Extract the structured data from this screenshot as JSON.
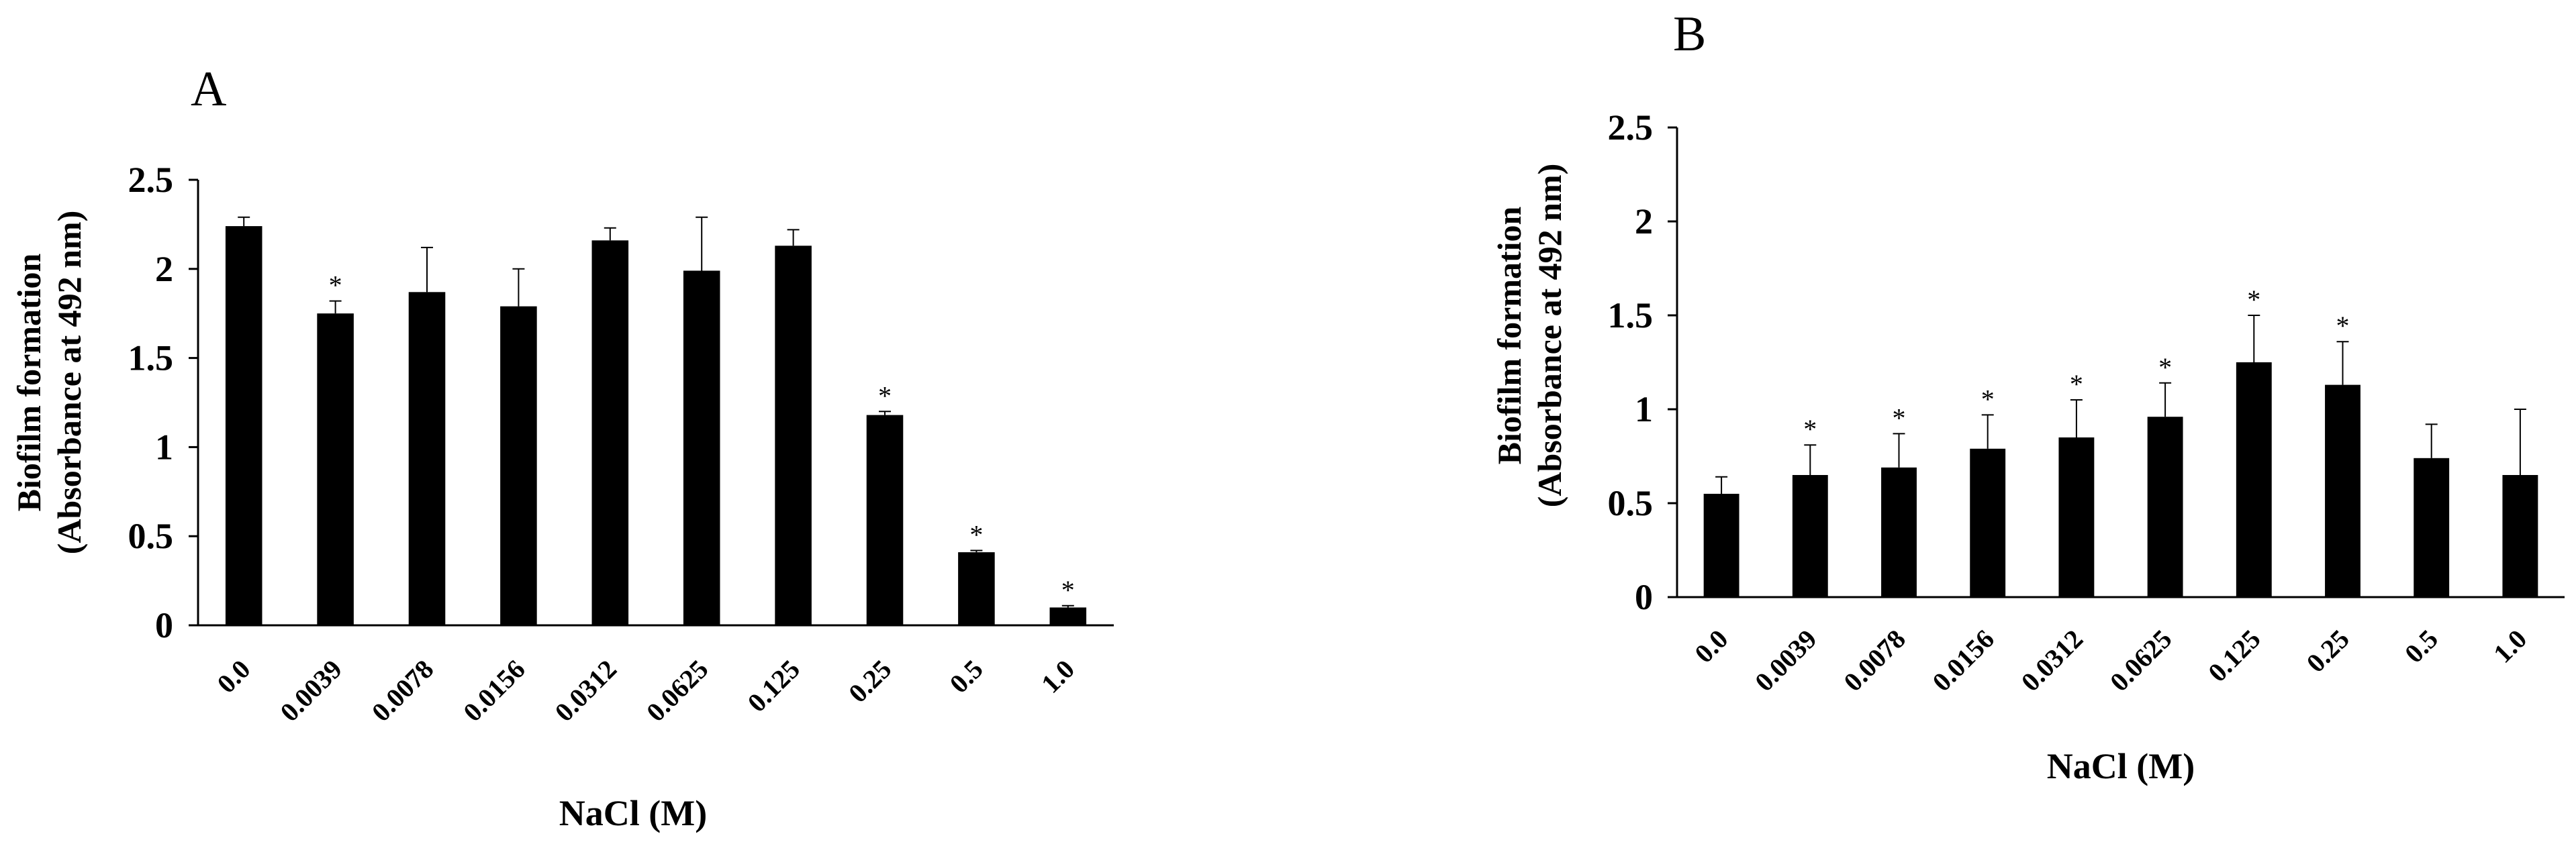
{
  "colors": {
    "bar": "#000000",
    "axis": "#000000",
    "background": "#ffffff"
  },
  "chart_data": [
    {
      "panel": "A",
      "type": "bar",
      "title": "",
      "xlabel": "NaCl (M)",
      "ylabel_line1": "Biofilm formation",
      "ylabel_line2": "(Absorbance at 492 nm)",
      "ylim": [
        0,
        2.5
      ],
      "yticks": [
        "0",
        "0.5",
        "1",
        "1.5",
        "2",
        "2.5"
      ],
      "categories": [
        "0.0",
        "0.0039",
        "0.0078",
        "0.0156",
        "0.0312",
        "0.0625",
        "0.125",
        "0.25",
        "0.5",
        "1.0"
      ],
      "values": [
        2.24,
        1.75,
        1.87,
        1.79,
        2.16,
        1.99,
        2.13,
        1.18,
        0.41,
        0.1
      ],
      "errors": [
        0.05,
        0.07,
        0.25,
        0.21,
        0.07,
        0.3,
        0.09,
        0.02,
        0.01,
        0.01
      ],
      "significant": [
        false,
        true,
        false,
        false,
        false,
        false,
        false,
        true,
        true,
        true
      ],
      "significance_marker": "*",
      "grid": false,
      "legend": "none"
    },
    {
      "panel": "B",
      "type": "bar",
      "title": "",
      "xlabel": "NaCl (M)",
      "ylabel_line1": "Biofilm formation",
      "ylabel_line2": "(Absorbance at 492 nm)",
      "ylim": [
        0,
        2.5
      ],
      "yticks": [
        "0",
        "0.5",
        "1",
        "1.5",
        "2",
        "2.5"
      ],
      "categories": [
        "0.0",
        "0.0039",
        "0.0078",
        "0.0156",
        "0.0312",
        "0.0625",
        "0.125",
        "0.25",
        "0.5",
        "1.0"
      ],
      "values": [
        0.55,
        0.65,
        0.69,
        0.79,
        0.85,
        0.96,
        1.25,
        1.13,
        0.74,
        0.65
      ],
      "errors": [
        0.09,
        0.16,
        0.18,
        0.18,
        0.2,
        0.18,
        0.25,
        0.23,
        0.18,
        0.35
      ],
      "significant": [
        false,
        true,
        true,
        true,
        true,
        true,
        true,
        true,
        false,
        false
      ],
      "significance_marker": "*",
      "grid": false,
      "legend": "none"
    }
  ]
}
